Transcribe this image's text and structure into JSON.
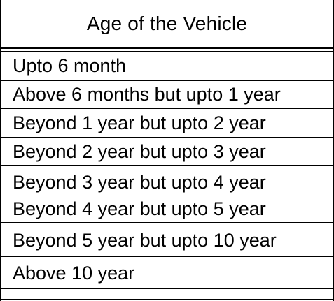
{
  "table": {
    "header": "Age of the Vehicle",
    "rows": [
      "Upto 6 month",
      "Above 6 months but upto 1 year",
      "Beyond 1 year but upto 2 year",
      "Beyond 2 year but upto 3 year",
      "Beyond 3 year but upto 4 year",
      "Beyond 4 year but upto 5 year",
      "Beyond 5 year but upto 10 year",
      "Above 10 year"
    ]
  }
}
